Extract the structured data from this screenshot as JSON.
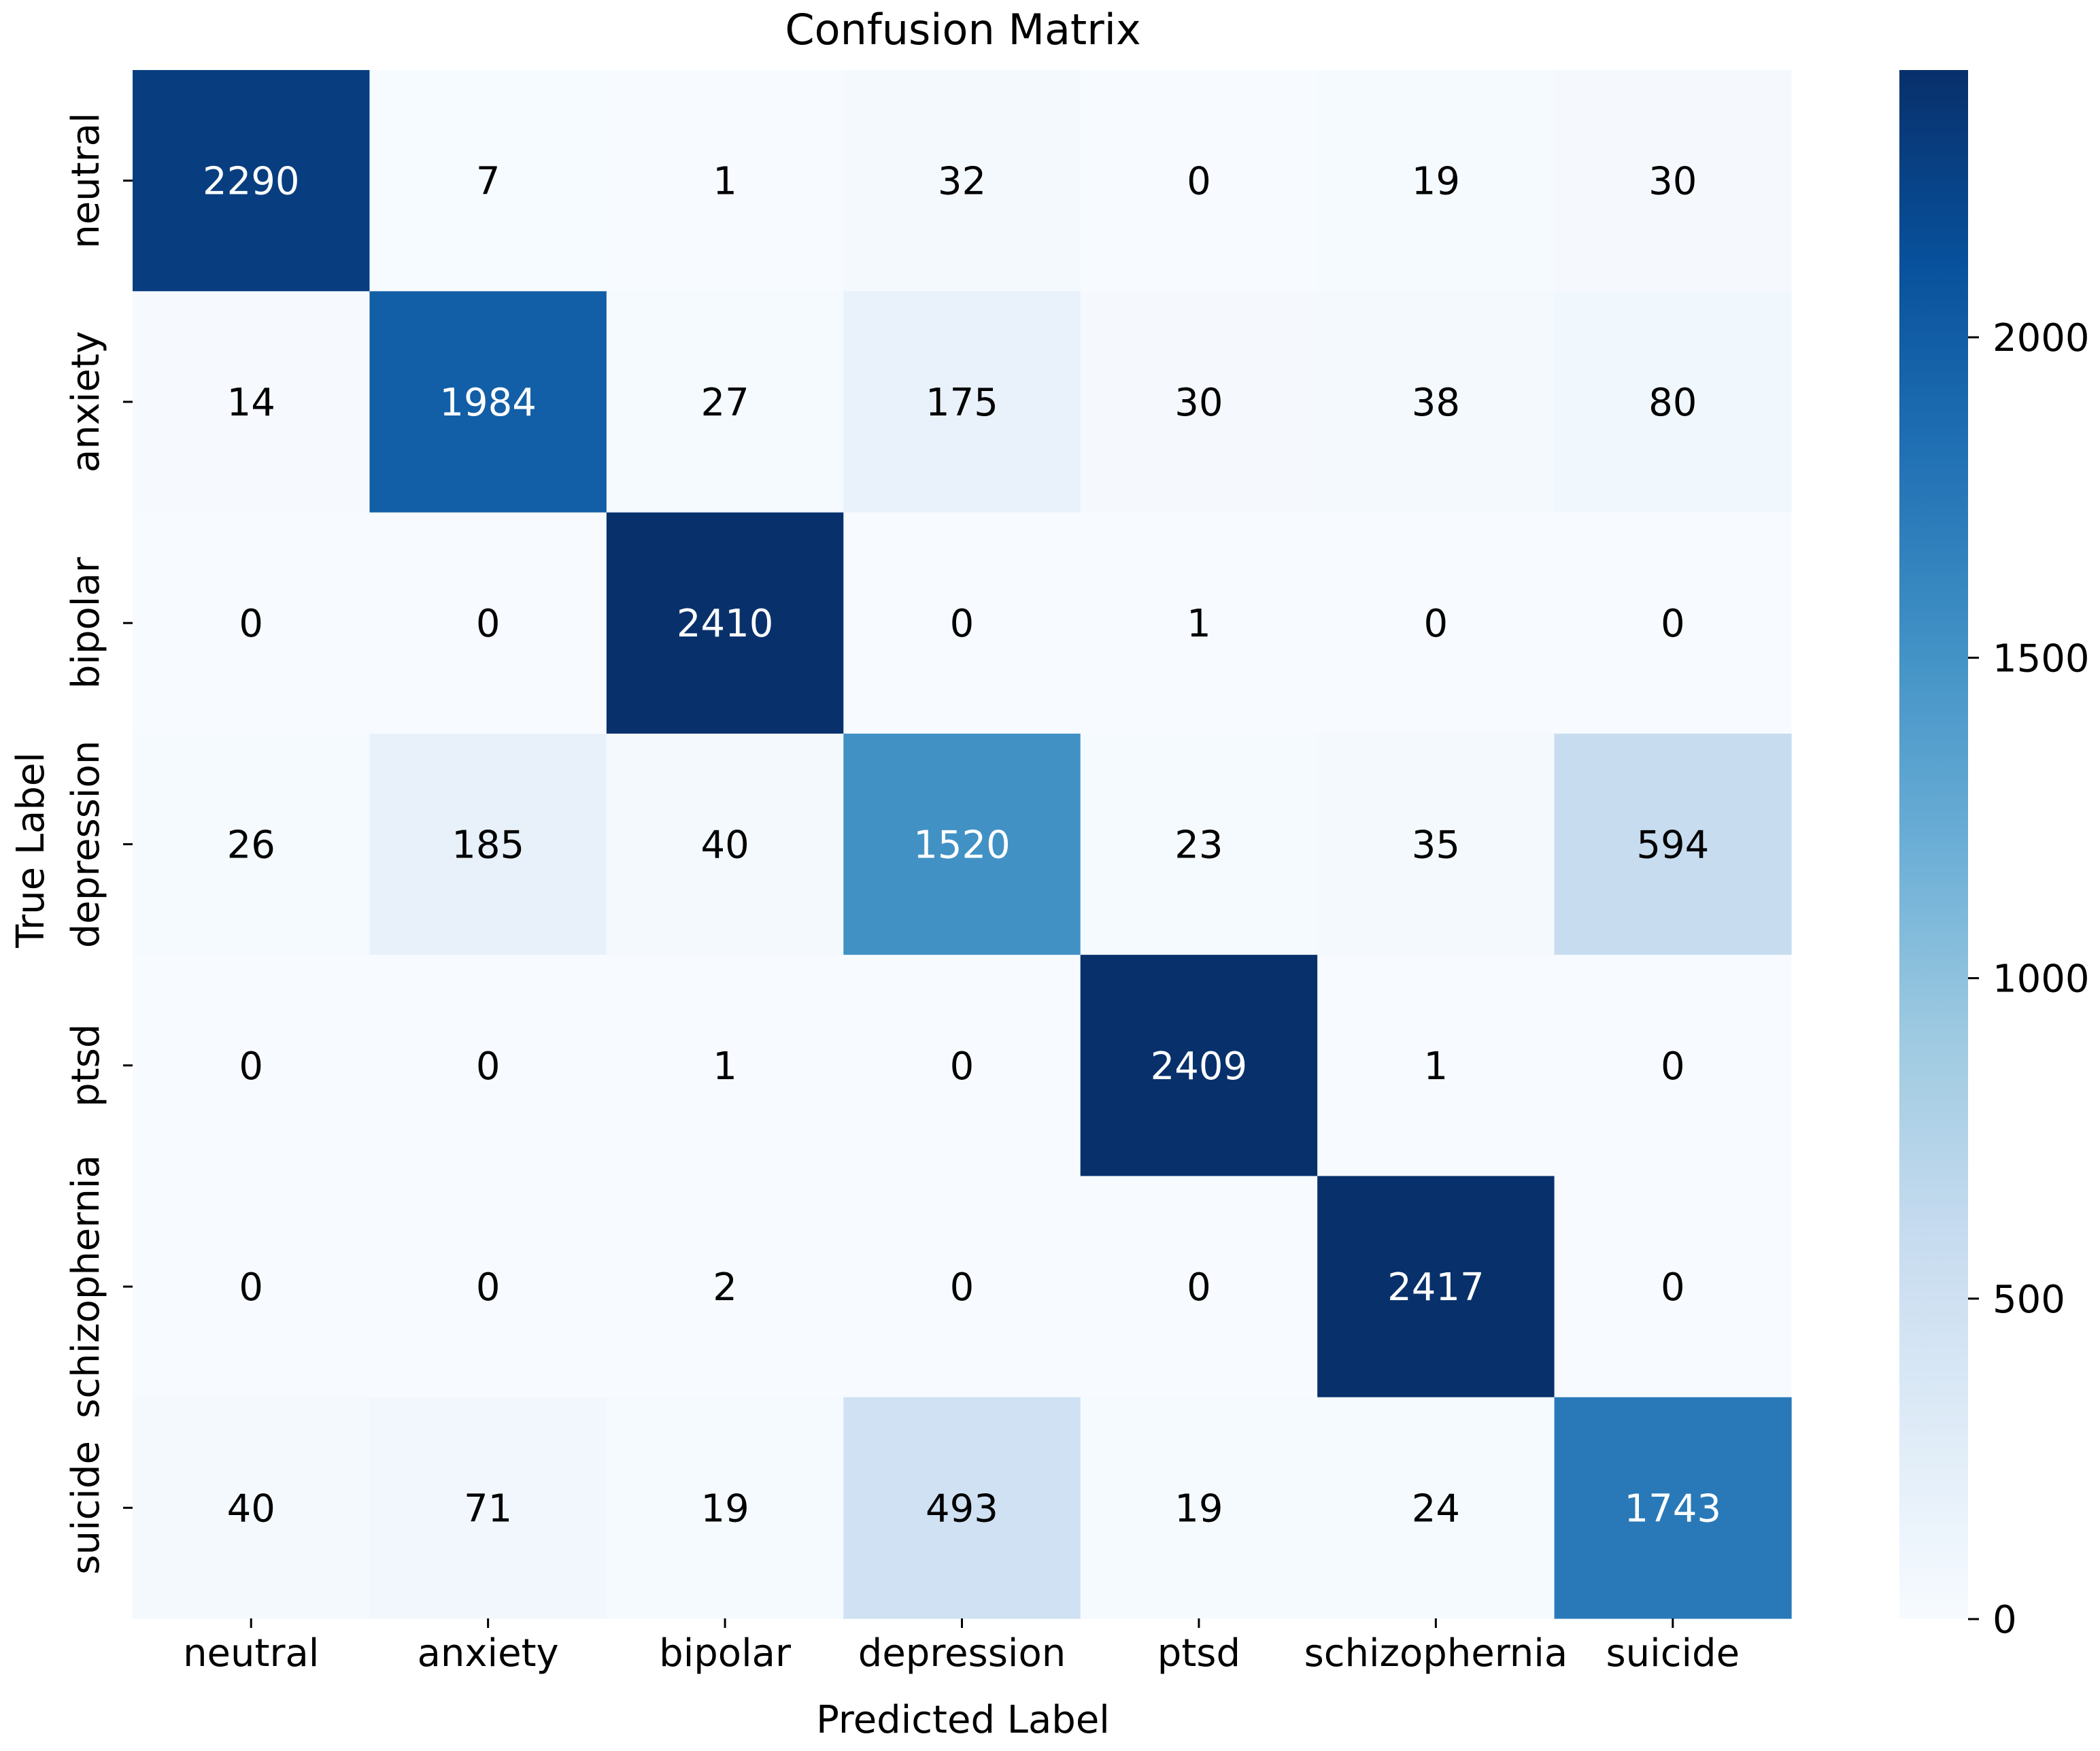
{
  "chart_data": {
    "type": "heatmap",
    "title": "Confusion Matrix",
    "xlabel": "Predicted Label",
    "ylabel": "True Label",
    "x_categories": [
      "neutral",
      "anxiety",
      "bipolar",
      "depression",
      "ptsd",
      "schizophernia",
      "suicide"
    ],
    "y_categories": [
      "neutral",
      "anxiety",
      "bipolar",
      "depression",
      "ptsd",
      "schizophernia",
      "suicide"
    ],
    "matrix": [
      [
        2290,
        7,
        1,
        32,
        0,
        19,
        30
      ],
      [
        14,
        1984,
        27,
        175,
        30,
        38,
        80
      ],
      [
        0,
        0,
        2410,
        0,
        1,
        0,
        0
      ],
      [
        26,
        185,
        40,
        1520,
        23,
        35,
        594
      ],
      [
        0,
        0,
        1,
        0,
        2409,
        1,
        0
      ],
      [
        0,
        0,
        2,
        0,
        0,
        2417,
        0
      ],
      [
        40,
        71,
        19,
        493,
        19,
        24,
        1743
      ]
    ],
    "colormap": "Blues",
    "colorbar": {
      "range": [
        0,
        2417
      ],
      "ticks": [
        0,
        500,
        1000,
        1500,
        2000
      ],
      "tick_labels": [
        "0",
        "500",
        "1000",
        "1500",
        "2000"
      ]
    }
  }
}
